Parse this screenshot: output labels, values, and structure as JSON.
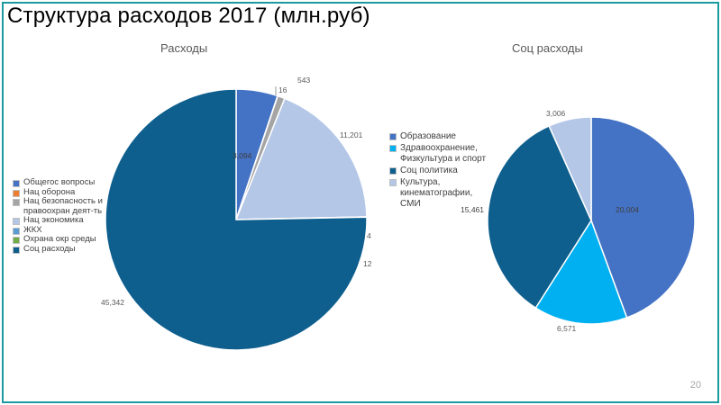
{
  "slide": {
    "title": "Структура расходов 2017 (млн.руб)",
    "page_number": "20"
  },
  "chart_data": [
    {
      "type": "pie",
      "title": "Расходы",
      "legend_position": "left",
      "slices": [
        {
          "label": "Общегос вопросы",
          "value": 3094,
          "display": "3,094",
          "color": "#4472c4"
        },
        {
          "label": "Нац оборона",
          "value": 16,
          "display": "16",
          "color": "#ed7d31"
        },
        {
          "label": "Нац безопасность и правоохран деят-ть",
          "value": 543,
          "display": "543",
          "color": "#a5a5a5"
        },
        {
          "label": "Нац экономика",
          "value": 11201,
          "display": "11,201",
          "color": "#b4c7e7"
        },
        {
          "label": "ЖКХ",
          "value": 4,
          "display": "4",
          "color": "#5b9bd5"
        },
        {
          "label": "Охрана окр среды",
          "value": 12,
          "display": "12",
          "color": "#70ad47"
        },
        {
          "label": "Соц расходы",
          "value": 45342,
          "display": "45,342",
          "color": "#0e5f8e"
        }
      ]
    },
    {
      "type": "pie",
      "title": "Соц расходы",
      "legend_position": "left",
      "slices": [
        {
          "label": "Образование",
          "value": 20004,
          "display": "20,004",
          "color": "#4472c4"
        },
        {
          "label": "Здравоохранение, Физкультура и спорт",
          "value": 6571,
          "display": "6,571",
          "color": "#00b0f0"
        },
        {
          "label": "Соц политика",
          "value": 15461,
          "display": "15,461",
          "color": "#0e5f8e"
        },
        {
          "label": "Культура, кинематографии, СМИ",
          "value": 3006,
          "display": "3,006",
          "color": "#b4c7e7"
        }
      ]
    }
  ]
}
